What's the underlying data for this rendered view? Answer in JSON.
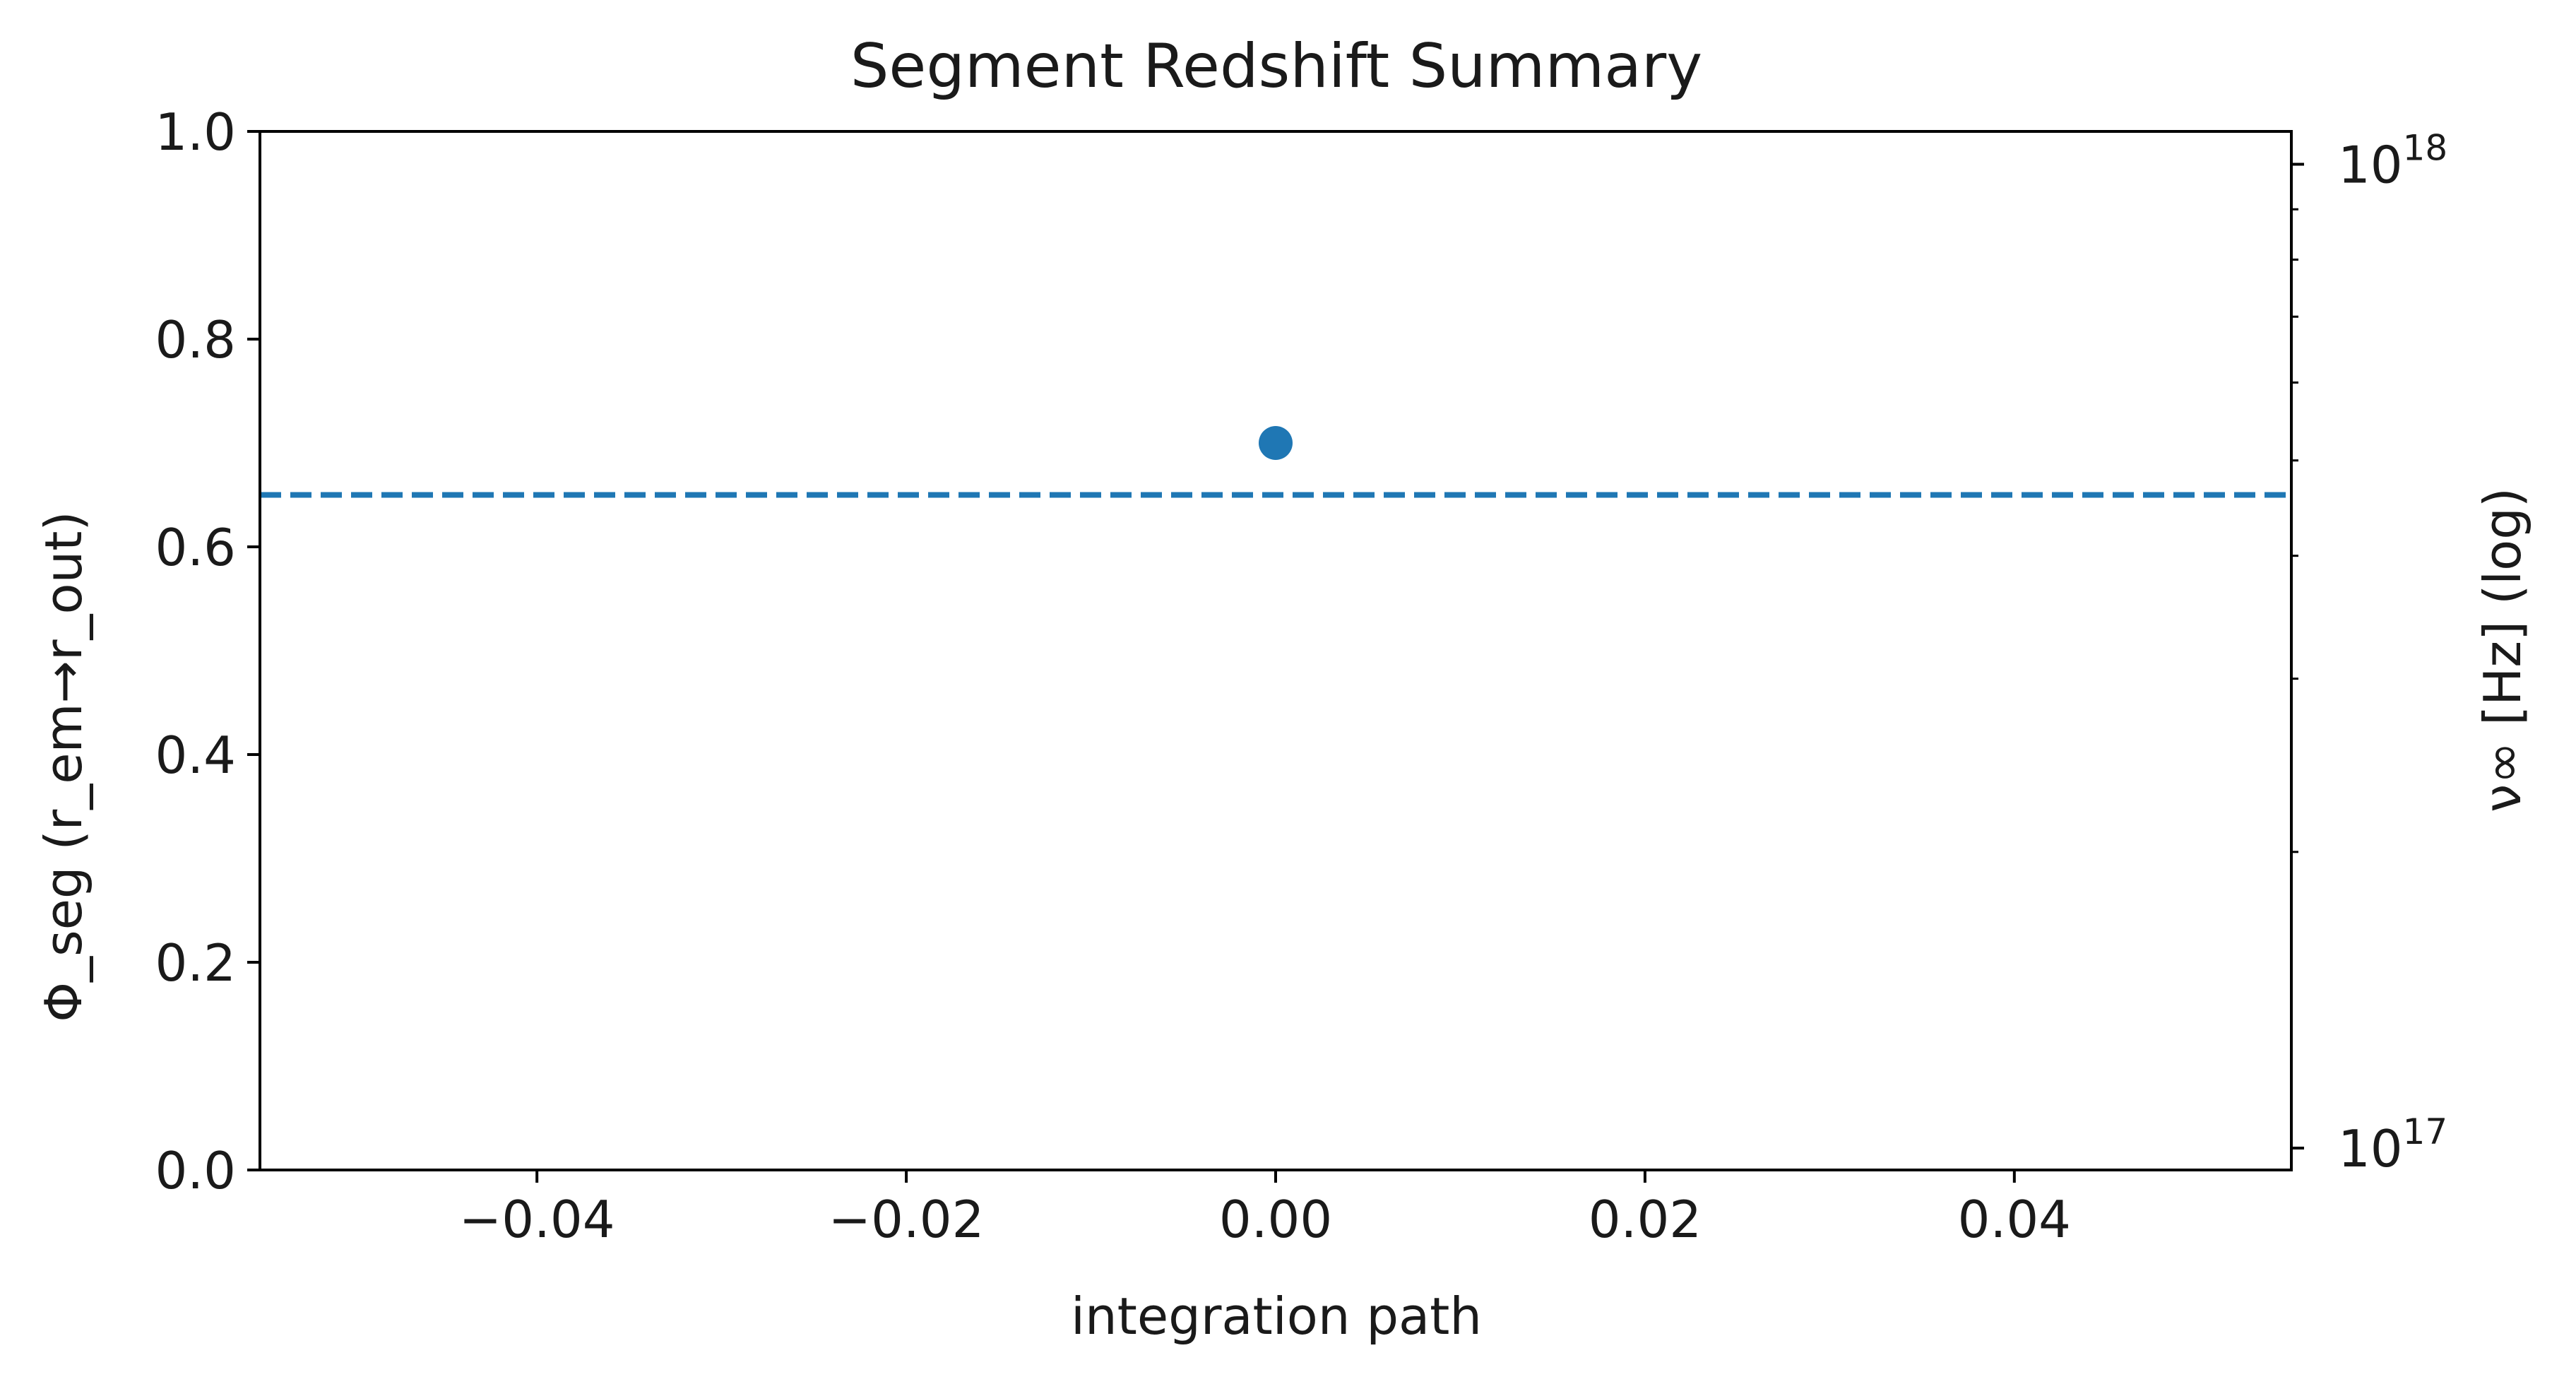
{
  "chart_data": {
    "type": "scatter",
    "title": "Segment Redshift Summary",
    "xlabel": "integration path",
    "ylabel": "Φ_seg (r_em→r_out)",
    "y2label": "ν∞ [Hz] (log)",
    "xlim": [
      -0.055,
      0.055
    ],
    "ylim": [
      0,
      1
    ],
    "y2lim": [
      9.5e+16,
      1.08e+18
    ],
    "y2scale": "log",
    "xticks": [
      -0.04,
      -0.02,
      0.0,
      0.02,
      0.04
    ],
    "xtick_labels": [
      "−0.04",
      "−0.02",
      "0.00",
      "0.02",
      "0.04"
    ],
    "yticks": [
      0.0,
      0.2,
      0.4,
      0.6,
      0.8,
      1.0
    ],
    "ytick_labels": [
      "0.0",
      "0.2",
      "0.4",
      "0.6",
      "0.8",
      "1.0"
    ],
    "y2_major_ticks": [
      1e+17,
      1e+18
    ],
    "y2_major_labels": [
      {
        "base": "10",
        "exp": "17"
      },
      {
        "base": "10",
        "exp": "18"
      }
    ],
    "y2_minor_ticks": [
      2e+17,
      3e+17,
      4e+17,
      5e+17,
      6e+17,
      7e+17,
      8e+17,
      9e+17
    ],
    "points": [
      {
        "x": 0.0,
        "y": 0.7
      }
    ],
    "hline": {
      "y": 0.65,
      "style": "dashed"
    },
    "color": "#1f77b4",
    "grid": false
  }
}
